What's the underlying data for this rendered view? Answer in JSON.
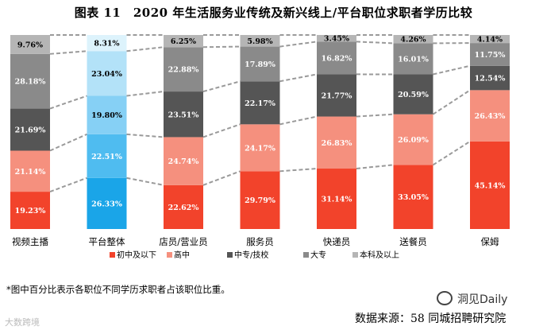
{
  "title": "图表 11　2020 年生活服务业传统及新兴线上/平台职位求职者学历比较",
  "chart_data": {
    "type": "bar",
    "stacked": true,
    "percent_stacked": true,
    "categories": [
      "视频主播",
      "平台整体",
      "店员/营业员",
      "服务员",
      "快递员",
      "送餐员",
      "保姆"
    ],
    "series": [
      {
        "name": "初中及以下",
        "values": [
          19.23,
          26.33,
          22.62,
          29.79,
          31.14,
          33.05,
          45.14
        ],
        "labels": [
          "19.23%",
          "26.33%",
          "22.62%",
          "29.79%",
          "31.14%",
          "33.05%",
          "45.14%"
        ]
      },
      {
        "name": "高中",
        "values": [
          21.14,
          22.51,
          24.74,
          24.17,
          26.83,
          26.09,
          26.43
        ],
        "labels": [
          "21.14%",
          "22.51%",
          "24.74%",
          "24.17%",
          "26.83%",
          "26.09%",
          "26.43%"
        ]
      },
      {
        "name": "中专/技校",
        "values": [
          21.69,
          19.8,
          23.51,
          22.17,
          21.77,
          20.59,
          12.54
        ],
        "labels": [
          "21.69%",
          "19.80%",
          "23.51%",
          "22.17%",
          "21.77%",
          "20.59%",
          "12.54%"
        ]
      },
      {
        "name": "大专",
        "values": [
          28.18,
          23.04,
          22.88,
          17.89,
          16.82,
          16.01,
          11.75
        ],
        "labels": [
          "28.18%",
          "23.04%",
          "22.88%",
          "17.89%",
          "16.82%",
          "16.01%",
          "11.75%"
        ]
      },
      {
        "name": "本科及以上",
        "values": [
          9.76,
          8.31,
          6.25,
          5.98,
          3.45,
          4.26,
          4.14
        ],
        "labels": [
          "9.76%",
          "8.31%",
          "6.25%",
          "5.98%",
          "3.45%",
          "4.26%",
          "4.14%"
        ]
      }
    ],
    "colors": {
      "default": [
        "#f2432b",
        "#f5907e",
        "#555555",
        "#8a8a8a",
        "#b5b5b5"
      ],
      "highlight": [
        "#1aa5e8",
        "#4fbcf0",
        "#86d0f5",
        "#b3e2f8",
        "#ddf3fc"
      ],
      "highlight_category": "平台整体",
      "label_light": "#ffffff",
      "label_dark": "#000000",
      "connector": "#9a9a9a"
    },
    "ylim": [
      0,
      100
    ],
    "connectors": "dashed",
    "legend_position": "bottom"
  },
  "footnote": "*图中百分比表示各职位不同学历求职者占该职位比重。",
  "source": "数据来源：58 同城招聘研究院",
  "watermark": "洞见Daily",
  "corner_mark": "大数跨境"
}
